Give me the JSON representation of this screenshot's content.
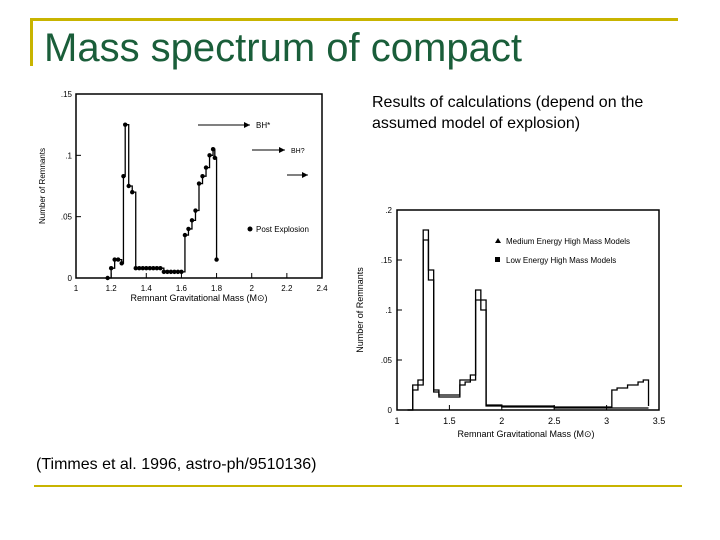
{
  "slide": {
    "title": "Mass spectrum of compact",
    "caption": "Results of calculations (depend on the assumed model of explosion)",
    "citation": "(Timmes et al. 1996, astro-ph/9510136)"
  },
  "chart_data": [
    {
      "type": "line",
      "xlabel": "Remnant Gravitational Mass (M⊙)",
      "ylabel": "Number of Remnants",
      "xlim": [
        1,
        2.4
      ],
      "ylim": [
        0,
        0.15
      ],
      "xticks": [
        "1",
        "1.2",
        "1.4",
        "1.6",
        "1.8",
        "2",
        "2.2",
        "2.4"
      ],
      "yticks": [
        ".15",
        ".1",
        ".05",
        "0"
      ],
      "annotations": [
        "BH*",
        "BH?"
      ],
      "series": [
        {
          "name": "Post Explosion",
          "x": [
            1.18,
            1.2,
            1.22,
            1.24,
            1.26,
            1.27,
            1.28,
            1.3,
            1.32,
            1.34,
            1.36,
            1.38,
            1.4,
            1.42,
            1.44,
            1.46,
            1.48,
            1.5,
            1.52,
            1.54,
            1.56,
            1.58,
            1.6,
            1.62,
            1.64,
            1.66,
            1.68,
            1.7,
            1.72,
            1.74,
            1.76,
            1.78,
            1.79,
            1.8
          ],
          "y": [
            0,
            0.008,
            0.015,
            0.015,
            0.012,
            0.083,
            0.125,
            0.075,
            0.07,
            0.008,
            0.008,
            0.008,
            0.008,
            0.008,
            0.008,
            0.008,
            0.008,
            0.005,
            0.005,
            0.005,
            0.005,
            0.005,
            0.005,
            0.035,
            0.04,
            0.047,
            0.055,
            0.077,
            0.083,
            0.09,
            0.1,
            0.105,
            0.098,
            0.015
          ]
        }
      ]
    },
    {
      "type": "line",
      "xlabel": "Remnant Gravitational Mass (M⊙)",
      "ylabel": "Number of Remnants",
      "xlim": [
        1,
        3.5
      ],
      "ylim": [
        0,
        0.2
      ],
      "xticks": [
        "1",
        "1.5",
        "2",
        "2.5",
        "3",
        "3.5"
      ],
      "yticks": [
        ".2",
        ".15",
        ".1",
        ".05",
        "0"
      ],
      "series": [
        {
          "name": "Medium Energy High Mass Models",
          "x": [
            1.1,
            1.15,
            1.2,
            1.25,
            1.3,
            1.35,
            1.4,
            1.45,
            1.5,
            1.55,
            1.6,
            1.65,
            1.7,
            1.75,
            1.8,
            1.85,
            2.0,
            2.5,
            3.0,
            3.05,
            3.1,
            3.2,
            3.3,
            3.35,
            3.4
          ],
          "y": [
            0,
            0.025,
            0.03,
            0.18,
            0.14,
            0.02,
            0.015,
            0.015,
            0.015,
            0.015,
            0.03,
            0.03,
            0.035,
            0.12,
            0.11,
            0.005,
            0.004,
            0.003,
            0.003,
            0.02,
            0.022,
            0.025,
            0.028,
            0.03,
            0.004
          ]
        },
        {
          "name": "Low Energy High Mass Models",
          "x": [
            1.1,
            1.15,
            1.2,
            1.25,
            1.3,
            1.35,
            1.4,
            1.45,
            1.5,
            1.55,
            1.6,
            1.65,
            1.7,
            1.75,
            1.8,
            1.85,
            2.0,
            2.5,
            3.0,
            3.4
          ],
          "y": [
            0,
            0.02,
            0.025,
            0.17,
            0.13,
            0.018,
            0.013,
            0.013,
            0.013,
            0.013,
            0.025,
            0.028,
            0.03,
            0.11,
            0.1,
            0.004,
            0.003,
            0.002,
            0.002,
            0.002
          ]
        }
      ]
    }
  ]
}
